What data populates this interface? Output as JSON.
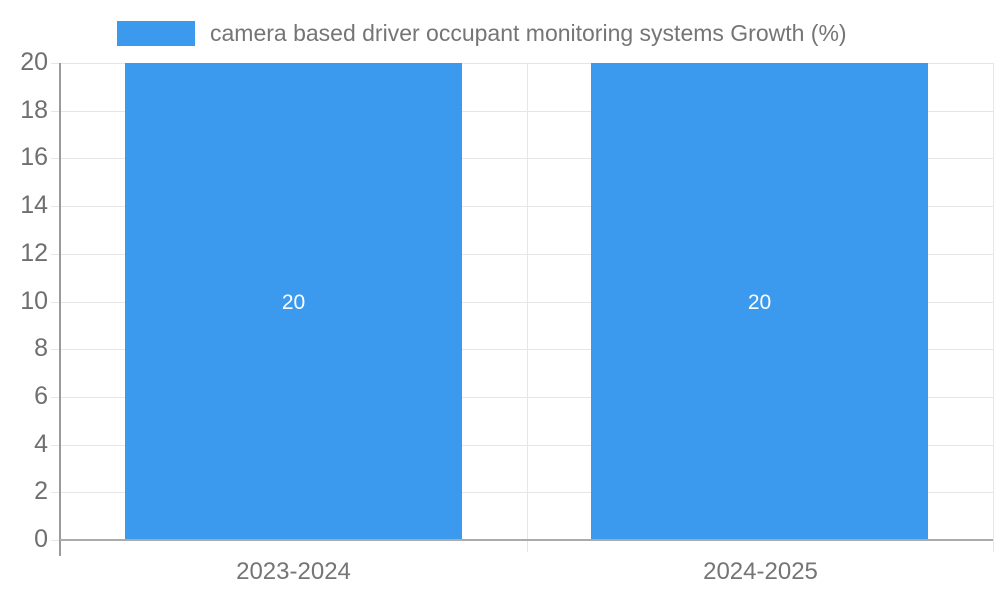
{
  "legend": {
    "label": "camera based driver occupant monitoring systems Growth (%)"
  },
  "colors": {
    "bar": "#3b99ee",
    "grid": "#e6e6e6",
    "axis_y": "#9a9a9a",
    "axis_x": "#ababab",
    "tick_text": "#6f6f6f",
    "label_text": "#757575",
    "bar_label_text": "#ffffff",
    "background": "#ffffff"
  },
  "chart_data": {
    "type": "bar",
    "title": "",
    "xlabel": "",
    "ylabel": "",
    "categories": [
      "2023-2024",
      "2024-2025"
    ],
    "series": [
      {
        "name": "camera based driver occupant monitoring systems Growth (%)",
        "values": [
          20,
          20
        ]
      }
    ],
    "data_labels": [
      "20",
      "20"
    ],
    "ylim": [
      0,
      20
    ],
    "ytick_step": 2,
    "yticks": [
      0,
      2,
      4,
      6,
      8,
      10,
      12,
      14,
      16,
      18,
      20
    ],
    "grid": true,
    "legend_position": "top"
  }
}
